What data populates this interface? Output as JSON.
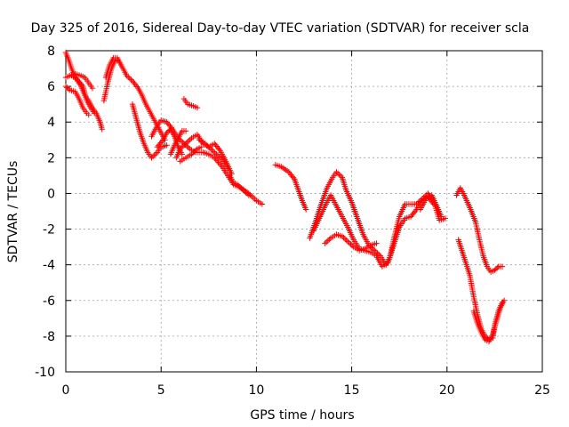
{
  "chart_data": {
    "type": "scatter",
    "title": "Day 325 of 2016, Sidereal Day-to-day VTEC variation (SDTVAR) for receiver scla",
    "xlabel": "GPS time / hours",
    "ylabel": "SDTVAR / TECUs",
    "xlim": [
      0,
      25
    ],
    "ylim": [
      -10,
      8
    ],
    "xticks": [
      "0",
      "5",
      "10",
      "15",
      "20",
      "25"
    ],
    "yticks": [
      "-10",
      "-8",
      "-6",
      "-4",
      "-2",
      "0",
      "2",
      "4",
      "6",
      "8"
    ],
    "grid": true,
    "marker": "+",
    "color": "#ff0000",
    "series": [
      {
        "segments": [
          [
            [
              0.0,
              7.9
            ],
            [
              0.15,
              7.5
            ],
            [
              0.3,
              7.0
            ],
            [
              0.5,
              6.5
            ],
            [
              0.8,
              6.0
            ],
            [
              1.0,
              5.5
            ],
            [
              1.2,
              5.2
            ],
            [
              1.4,
              4.8
            ],
            [
              1.6,
              4.5
            ],
            [
              1.8,
              4.0
            ],
            [
              1.9,
              3.6
            ]
          ],
          [
            [
              0.0,
              6.5
            ],
            [
              0.2,
              6.6
            ],
            [
              0.5,
              6.7
            ],
            [
              0.8,
              6.6
            ],
            [
              1.0,
              6.5
            ],
            [
              1.2,
              6.2
            ],
            [
              1.4,
              5.9
            ]
          ],
          [
            [
              0.0,
              6.0
            ],
            [
              0.2,
              5.8
            ],
            [
              0.5,
              5.7
            ],
            [
              0.7,
              5.3
            ],
            [
              0.9,
              4.8
            ],
            [
              1.1,
              4.5
            ],
            [
              1.2,
              4.4
            ]
          ],
          [
            [
              2.0,
              5.2
            ],
            [
              2.2,
              6.2
            ],
            [
              2.4,
              7.0
            ],
            [
              2.6,
              7.5
            ],
            [
              2.8,
              7.4
            ],
            [
              3.0,
              7.0
            ],
            [
              3.2,
              6.6
            ],
            [
              3.5,
              6.3
            ],
            [
              3.8,
              5.9
            ],
            [
              4.0,
              5.5
            ],
            [
              4.2,
              5.0
            ],
            [
              4.4,
              4.6
            ],
            [
              4.6,
              4.2
            ],
            [
              4.8,
              3.8
            ],
            [
              5.0,
              3.4
            ],
            [
              5.2,
              3.0
            ]
          ],
          [
            [
              3.5,
              5.0
            ],
            [
              3.7,
              4.2
            ],
            [
              3.9,
              3.4
            ],
            [
              4.1,
              2.8
            ],
            [
              4.3,
              2.3
            ],
            [
              4.5,
              2.0
            ],
            [
              4.8,
              2.3
            ],
            [
              5.0,
              2.6
            ],
            [
              5.3,
              2.7
            ]
          ],
          [
            [
              4.5,
              3.2
            ],
            [
              4.8,
              3.8
            ],
            [
              5.0,
              4.1
            ],
            [
              5.3,
              4.0
            ],
            [
              5.6,
              3.6
            ],
            [
              5.9,
              3.1
            ],
            [
              6.2,
              2.8
            ],
            [
              6.5,
              2.5
            ],
            [
              6.8,
              2.3
            ],
            [
              7.2,
              2.3
            ],
            [
              7.5,
              2.2
            ],
            [
              7.8,
              2.0
            ],
            [
              8.2,
              1.5
            ],
            [
              8.5,
              1.0
            ],
            [
              8.8,
              0.5
            ],
            [
              9.2,
              0.3
            ],
            [
              9.6,
              0.0
            ],
            [
              10.0,
              -0.4
            ],
            [
              10.3,
              -0.6
            ]
          ],
          [
            [
              5.8,
              2.0
            ],
            [
              6.0,
              2.5
            ],
            [
              6.3,
              2.8
            ],
            [
              6.6,
              3.1
            ],
            [
              6.9,
              3.3
            ],
            [
              7.2,
              2.8
            ],
            [
              7.5,
              2.6
            ],
            [
              7.8,
              2.8
            ],
            [
              8.1,
              2.4
            ],
            [
              8.4,
              1.8
            ],
            [
              8.7,
              1.1
            ]
          ],
          [
            [
              6.0,
              1.8
            ],
            [
              6.3,
              2.0
            ],
            [
              6.6,
              2.2
            ],
            [
              6.9,
              2.5
            ],
            [
              7.1,
              2.6
            ]
          ],
          [
            [
              6.2,
              5.3
            ],
            [
              6.4,
              5.0
            ],
            [
              6.7,
              4.9
            ],
            [
              6.9,
              4.8
            ]
          ],
          [
            [
              5.5,
              2.2
            ],
            [
              5.7,
              2.7
            ],
            [
              5.9,
              3.1
            ],
            [
              6.1,
              3.5
            ],
            [
              6.3,
              3.5
            ]
          ],
          [
            [
              11.0,
              1.6
            ],
            [
              11.3,
              1.5
            ],
            [
              11.7,
              1.2
            ],
            [
              12.0,
              0.8
            ],
            [
              12.2,
              0.2
            ],
            [
              12.4,
              -0.4
            ],
            [
              12.6,
              -0.9
            ]
          ],
          [
            [
              12.8,
              -2.5
            ],
            [
              13.1,
              -1.6
            ],
            [
              13.4,
              -0.6
            ],
            [
              13.7,
              0.3
            ],
            [
              14.0,
              0.9
            ],
            [
              14.2,
              1.2
            ],
            [
              14.5,
              0.9
            ],
            [
              14.7,
              0.2
            ],
            [
              15.0,
              -0.5
            ],
            [
              15.3,
              -1.4
            ],
            [
              15.6,
              -2.3
            ],
            [
              15.9,
              -2.9
            ],
            [
              16.2,
              -3.2
            ],
            [
              16.5,
              -3.5
            ],
            [
              16.8,
              -4.0
            ],
            [
              17.0,
              -3.6
            ],
            [
              17.2,
              -2.6
            ],
            [
              17.5,
              -1.3
            ],
            [
              17.8,
              -0.6
            ],
            [
              18.1,
              -0.6
            ],
            [
              18.4,
              -0.6
            ],
            [
              18.7,
              -0.3
            ],
            [
              19.0,
              0.0
            ],
            [
              19.3,
              -0.4
            ],
            [
              19.6,
              -1.5
            ],
            [
              19.9,
              -1.4
            ]
          ],
          [
            [
              13.0,
              -2.1
            ],
            [
              13.3,
              -1.4
            ],
            [
              13.6,
              -0.7
            ],
            [
              13.9,
              -0.1
            ],
            [
              14.2,
              -0.7
            ],
            [
              14.5,
              -1.3
            ],
            [
              14.8,
              -1.9
            ],
            [
              15.1,
              -2.6
            ],
            [
              15.4,
              -3.1
            ],
            [
              15.7,
              -3.2
            ],
            [
              16.0,
              -3.3
            ],
            [
              16.3,
              -3.5
            ],
            [
              16.6,
              -4.1
            ],
            [
              16.9,
              -3.9
            ],
            [
              17.2,
              -2.9
            ],
            [
              17.5,
              -1.9
            ],
            [
              17.8,
              -1.4
            ],
            [
              18.1,
              -1.3
            ],
            [
              18.4,
              -0.9
            ],
            [
              18.7,
              -0.4
            ],
            [
              19.0,
              -0.2
            ],
            [
              19.3,
              -0.6
            ]
          ],
          [
            [
              13.6,
              -2.8
            ],
            [
              13.9,
              -2.5
            ],
            [
              14.2,
              -2.3
            ],
            [
              14.5,
              -2.4
            ],
            [
              14.8,
              -2.7
            ],
            [
              15.1,
              -3.0
            ],
            [
              15.4,
              -3.2
            ],
            [
              15.7,
              -3.1
            ],
            [
              16.0,
              -2.9
            ],
            [
              16.3,
              -2.8
            ]
          ],
          [
            [
              20.5,
              -0.1
            ],
            [
              20.7,
              0.3
            ],
            [
              20.9,
              -0.1
            ],
            [
              21.2,
              -0.8
            ],
            [
              21.5,
              -1.6
            ],
            [
              21.7,
              -2.6
            ],
            [
              21.9,
              -3.5
            ],
            [
              22.1,
              -4.1
            ],
            [
              22.3,
              -4.4
            ],
            [
              22.5,
              -4.3
            ],
            [
              22.7,
              -4.1
            ],
            [
              22.9,
              -4.1
            ]
          ],
          [
            [
              20.6,
              -2.6
            ],
            [
              20.9,
              -3.6
            ],
            [
              21.2,
              -4.6
            ],
            [
              21.4,
              -5.8
            ],
            [
              21.6,
              -6.8
            ],
            [
              21.8,
              -7.6
            ],
            [
              22.0,
              -8.0
            ],
            [
              22.2,
              -8.2
            ],
            [
              22.4,
              -8.1
            ],
            [
              22.5,
              -7.4
            ],
            [
              22.7,
              -6.6
            ],
            [
              22.9,
              -6.1
            ]
          ],
          [
            [
              21.4,
              -6.6
            ],
            [
              21.6,
              -7.3
            ],
            [
              21.8,
              -7.8
            ],
            [
              22.0,
              -8.2
            ],
            [
              22.2,
              -8.3
            ],
            [
              22.4,
              -7.9
            ],
            [
              22.6,
              -7.1
            ],
            [
              22.8,
              -6.4
            ],
            [
              23.0,
              -6.0
            ]
          ],
          [
            [
              0.3,
              6.6
            ],
            [
              0.6,
              6.4
            ],
            [
              0.9,
              6.0
            ],
            [
              1.1,
              5.2
            ],
            [
              1.3,
              4.8
            ],
            [
              1.5,
              4.5
            ]
          ],
          [
            [
              2.1,
              6.5
            ],
            [
              2.3,
              7.2
            ],
            [
              2.5,
              7.6
            ],
            [
              2.7,
              7.6
            ],
            [
              2.9,
              7.2
            ]
          ],
          [
            [
              4.8,
              2.6
            ],
            [
              5.1,
              3.0
            ],
            [
              5.3,
              3.4
            ],
            [
              5.5,
              3.6
            ],
            [
              5.7,
              3.2
            ],
            [
              5.9,
              2.6
            ],
            [
              6.1,
              2.2
            ]
          ],
          [
            [
              7.0,
              3.0
            ],
            [
              7.3,
              2.8
            ],
            [
              7.6,
              2.5
            ],
            [
              7.9,
              2.2
            ],
            [
              8.2,
              1.9
            ],
            [
              8.5,
              1.4
            ]
          ],
          [
            [
              8.6,
              1.0
            ],
            [
              8.8,
              0.6
            ],
            [
              9.0,
              0.5
            ],
            [
              9.3,
              0.2
            ],
            [
              9.6,
              -0.1
            ]
          ],
          [
            [
              18.6,
              -0.9
            ],
            [
              18.9,
              -0.3
            ],
            [
              19.2,
              -0.1
            ],
            [
              19.5,
              -0.8
            ],
            [
              19.7,
              -1.3
            ]
          ]
        ]
      }
    ]
  }
}
